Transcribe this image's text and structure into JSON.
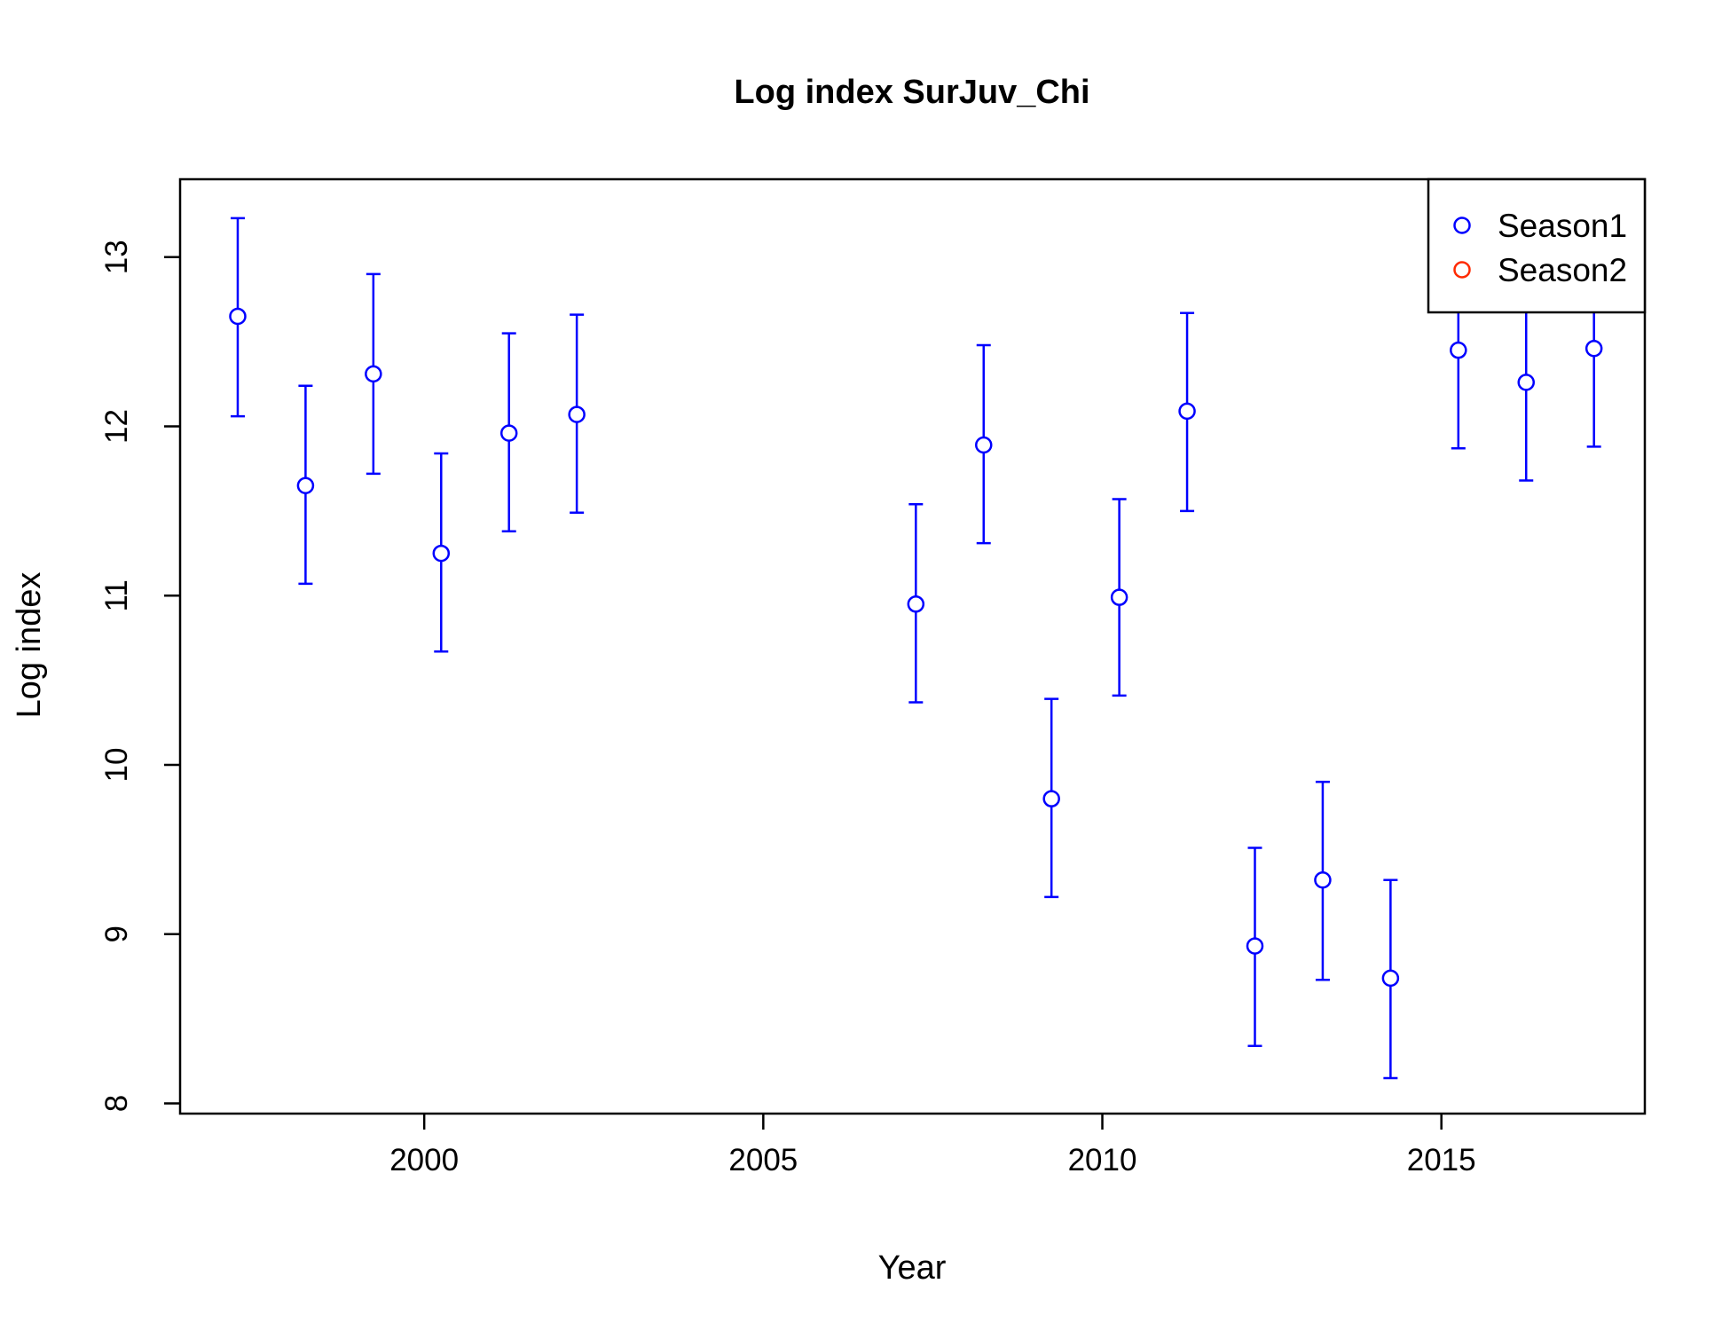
{
  "chart_data": {
    "type": "scatter",
    "title": "Log index SurJuv_Chi",
    "xlabel": "Year",
    "ylabel": "Log index",
    "xlim": [
      1996.4,
      2018.0
    ],
    "ylim": [
      7.94,
      13.46
    ],
    "x_ticks": [
      2000,
      2005,
      2010,
      2015
    ],
    "y_ticks": [
      8,
      9,
      10,
      11,
      12,
      13
    ],
    "grid": false,
    "legend": {
      "position": "top-right",
      "entries": [
        {
          "label": "Season1",
          "color": "#0000ff"
        },
        {
          "label": "Season2",
          "color": "#ff2a00"
        }
      ]
    },
    "series": [
      {
        "name": "Season1",
        "color": "#0000ff",
        "points": [
          {
            "x": 1997.25,
            "y": 12.65,
            "low": 12.06,
            "high": 13.23
          },
          {
            "x": 1998.25,
            "y": 11.65,
            "low": 11.07,
            "high": 12.24
          },
          {
            "x": 1999.25,
            "y": 12.31,
            "low": 11.72,
            "high": 12.9
          },
          {
            "x": 2000.25,
            "y": 11.25,
            "low": 10.67,
            "high": 11.84
          },
          {
            "x": 2001.25,
            "y": 11.96,
            "low": 11.38,
            "high": 12.55
          },
          {
            "x": 2002.25,
            "y": 12.07,
            "low": 11.49,
            "high": 12.66
          },
          {
            "x": 2007.25,
            "y": 10.95,
            "low": 10.37,
            "high": 11.54
          },
          {
            "x": 2008.25,
            "y": 11.89,
            "low": 11.31,
            "high": 12.48
          },
          {
            "x": 2009.25,
            "y": 9.8,
            "low": 9.22,
            "high": 10.39
          },
          {
            "x": 2010.25,
            "y": 10.99,
            "low": 10.41,
            "high": 11.57
          },
          {
            "x": 2011.25,
            "y": 12.09,
            "low": 11.5,
            "high": 12.67
          },
          {
            "x": 2012.25,
            "y": 8.93,
            "low": 8.34,
            "high": 9.51
          },
          {
            "x": 2013.25,
            "y": 9.32,
            "low": 8.73,
            "high": 9.9
          },
          {
            "x": 2014.25,
            "y": 8.74,
            "low": 8.15,
            "high": 9.32
          },
          {
            "x": 2015.25,
            "y": 12.45,
            "low": 11.87,
            "high": 13.03
          },
          {
            "x": 2016.25,
            "y": 12.26,
            "low": 11.68,
            "high": 12.84
          },
          {
            "x": 2017.25,
            "y": 12.46,
            "low": 11.88,
            "high": 13.04
          }
        ]
      }
    ]
  }
}
